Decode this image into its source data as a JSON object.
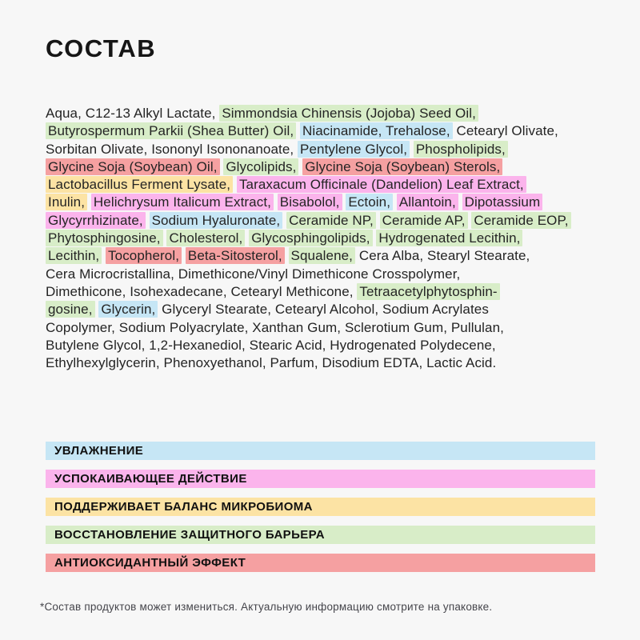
{
  "title": "СОСТАВ",
  "colors": {
    "blue": "#c6e6f5",
    "pink": "#fbb4ec",
    "yellow": "#fce3a4",
    "green": "#d8edc8",
    "red": "#f5a0a1",
    "none": "transparent"
  },
  "ingredients": {
    "lines": [
      {
        "segments": [
          {
            "text": "Aqua, C12-13 Alkyl Lactate, ",
            "hl": "none"
          },
          {
            "text": "Simmondsia Chinensis (Jojoba) Seed Oil,",
            "hl": "green"
          }
        ]
      },
      {
        "segments": [
          {
            "text": "Butyrospermum Parkii (Shea Butter) Oil,",
            "hl": "green"
          },
          {
            "text": " ",
            "hl": "none"
          },
          {
            "text": "Niacinamide, Trehalose,",
            "hl": "blue"
          },
          {
            "text": " Cetearyl Olivate,",
            "hl": "none"
          }
        ]
      },
      {
        "segments": [
          {
            "text": "Sorbitan Olivate, Isononyl Isononanoate, ",
            "hl": "none"
          },
          {
            "text": "Pentylene Glycol,",
            "hl": "blue"
          },
          {
            "text": " ",
            "hl": "none"
          },
          {
            "text": "Phospholipids,",
            "hl": "green"
          }
        ]
      },
      {
        "segments": [
          {
            "text": "Glycine Soja (Soybean) Oil,",
            "hl": "red"
          },
          {
            "text": " ",
            "hl": "none"
          },
          {
            "text": "Glycolipids,",
            "hl": "green"
          },
          {
            "text": " ",
            "hl": "none"
          },
          {
            "text": "Glycine Soja (Soybean) Sterols,",
            "hl": "red"
          }
        ]
      },
      {
        "segments": [
          {
            "text": "Lactobacillus Ferment Lysate,",
            "hl": "yellow"
          },
          {
            "text": " ",
            "hl": "none"
          },
          {
            "text": "Taraxacum Officinale (Dandelion) Leaf Extract,",
            "hl": "pink"
          }
        ]
      },
      {
        "segments": [
          {
            "text": "Inulin,",
            "hl": "yellow"
          },
          {
            "text": " ",
            "hl": "none"
          },
          {
            "text": "Helichrysum Italicum Extract,",
            "hl": "pink"
          },
          {
            "text": " ",
            "hl": "none"
          },
          {
            "text": "Bisabolol,",
            "hl": "pink"
          },
          {
            "text": " ",
            "hl": "none"
          },
          {
            "text": "Ectoin,",
            "hl": "blue"
          },
          {
            "text": " ",
            "hl": "none"
          },
          {
            "text": "Allantoin,",
            "hl": "pink"
          },
          {
            "text": " ",
            "hl": "none"
          },
          {
            "text": "Dipotassium",
            "hl": "pink"
          }
        ]
      },
      {
        "segments": [
          {
            "text": "Glycyrrhizinate,",
            "hl": "pink"
          },
          {
            "text": " ",
            "hl": "none"
          },
          {
            "text": "Sodium Hyaluronate,",
            "hl": "blue"
          },
          {
            "text": " ",
            "hl": "none"
          },
          {
            "text": "Ceramide NP,",
            "hl": "green"
          },
          {
            "text": " ",
            "hl": "none"
          },
          {
            "text": "Ceramide AP,",
            "hl": "green"
          },
          {
            "text": " ",
            "hl": "none"
          },
          {
            "text": "Ceramide EOP,",
            "hl": "green"
          }
        ]
      },
      {
        "segments": [
          {
            "text": "Phytosphingosine,",
            "hl": "green"
          },
          {
            "text": " ",
            "hl": "none"
          },
          {
            "text": "Cholesterol,",
            "hl": "green"
          },
          {
            "text": " ",
            "hl": "none"
          },
          {
            "text": "Glycosphingolipids,",
            "hl": "green"
          },
          {
            "text": " ",
            "hl": "none"
          },
          {
            "text": "Hydrogenated Lecithin,",
            "hl": "green"
          }
        ]
      },
      {
        "segments": [
          {
            "text": "Lecithin,",
            "hl": "green"
          },
          {
            "text": " ",
            "hl": "none"
          },
          {
            "text": "Tocopherol,",
            "hl": "red"
          },
          {
            "text": " ",
            "hl": "none"
          },
          {
            "text": "Beta-Sitosterol,",
            "hl": "red"
          },
          {
            "text": " ",
            "hl": "none"
          },
          {
            "text": "Squalene,",
            "hl": "green"
          },
          {
            "text": " Cera Alba, Stearyl Stearate,",
            "hl": "none"
          }
        ]
      },
      {
        "segments": [
          {
            "text": "Cera Microcristallina, Dimethicone/Vinyl Dimethicone Crosspolymer,",
            "hl": "none"
          }
        ]
      },
      {
        "segments": [
          {
            "text": "Dimethicone, Isohexadecane, Cetearyl Methicone, ",
            "hl": "none"
          },
          {
            "text": "Tetraacetylphytosphin-",
            "hl": "green"
          }
        ]
      },
      {
        "segments": [
          {
            "text": "gosine,",
            "hl": "green"
          },
          {
            "text": " ",
            "hl": "none"
          },
          {
            "text": "Glycerin,",
            "hl": "blue"
          },
          {
            "text": " Glyceryl Stearate, Cetearyl Alcohol, Sodium Acrylates",
            "hl": "none"
          }
        ]
      },
      {
        "segments": [
          {
            "text": "Copolymer, Sodium Polyacrylate, Xanthan Gum, Sclerotium Gum, Pullulan,",
            "hl": "none"
          }
        ]
      },
      {
        "segments": [
          {
            "text": "Butylene Glycol, 1,2-Hexanediol, Stearic Acid, Hydrogenated Polydecene,",
            "hl": "none"
          }
        ]
      },
      {
        "segments": [
          {
            "text": "Ethylhexylglycerin, Phenoxyethanol, Parfum, Disodium EDTA, Lactic Acid.",
            "hl": "none"
          }
        ]
      }
    ]
  },
  "legend": {
    "items": [
      {
        "label": "УВЛАЖНЕНИЕ",
        "color": "blue",
        "key": "hydration"
      },
      {
        "label": "УСПОКАИВАЮЩЕЕ ДЕЙСТВИЕ",
        "color": "pink",
        "key": "soothing"
      },
      {
        "label": "ПОДДЕРЖИВАЕТ БАЛАНС МИКРОБИОМА",
        "color": "yellow",
        "key": "microbiome-balance"
      },
      {
        "label": "ВОССТАНОВЛЕНИЕ ЗАЩИТНОГО БАРЬЕРА",
        "color": "green",
        "key": "barrier-restoration"
      },
      {
        "label": "АНТИОКСИДАНТНЫЙ ЭФФЕКТ",
        "color": "red",
        "key": "antioxidant"
      }
    ]
  },
  "footnote": {
    "text": "*Состав продуктов может измениться. Актуальную информацию смотрите на упаковке."
  }
}
